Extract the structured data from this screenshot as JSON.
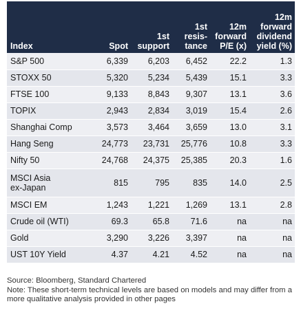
{
  "table": {
    "headers": [
      "Index",
      "Spot",
      "1st\nsupport",
      "1st\nresis-\ntance",
      "12m\nforward\nP/E (x)",
      "12m\nforward\ndividend\nyield (%)"
    ],
    "rows": [
      [
        "S&P 500",
        "6,339",
        "6,203",
        "6,452",
        "22.2",
        "1.3"
      ],
      [
        "STOXX 50",
        "5,320",
        "5,234",
        "5,439",
        "15.1",
        "3.3"
      ],
      [
        "FTSE 100",
        "9,133",
        "8,843",
        "9,307",
        "13.1",
        "3.6"
      ],
      [
        "TOPIX",
        "2,943",
        "2,834",
        "3,019",
        "15.4",
        "2.6"
      ],
      [
        "Shanghai Comp",
        "3,573",
        "3,464",
        "3,659",
        "13.0",
        "3.1"
      ],
      [
        "Hang Seng",
        "24,773",
        "23,731",
        "25,776",
        "10.8",
        "3.3"
      ],
      [
        "Nifty 50",
        "24,768",
        "24,375",
        "25,385",
        "20.3",
        "1.6"
      ],
      [
        "MSCI Asia\nex-Japan",
        "815",
        "795",
        "835",
        "14.0",
        "2.5"
      ],
      [
        "MSCI EM",
        "1,243",
        "1,221",
        "1,269",
        "13.1",
        "2.8"
      ],
      [
        "Crude oil (WTI)",
        "69.3",
        "65.8",
        "71.6",
        "na",
        "na"
      ],
      [
        "Gold",
        "3,290",
        "3,226",
        "3,397",
        "na",
        "na"
      ],
      [
        "UST 10Y Yield",
        "4.37",
        "4.21",
        "4.52",
        "na",
        "na"
      ]
    ]
  },
  "footer": {
    "source": "Source: Bloomberg, Standard Chartered",
    "note": "Note: These short-term technical levels are based on models and may differ from a more qualitative analysis provided in other pages"
  },
  "colors": {
    "header_bg": "#1f2d47",
    "row_light": "#eeeff3",
    "row_dark": "#e4e6ec"
  }
}
